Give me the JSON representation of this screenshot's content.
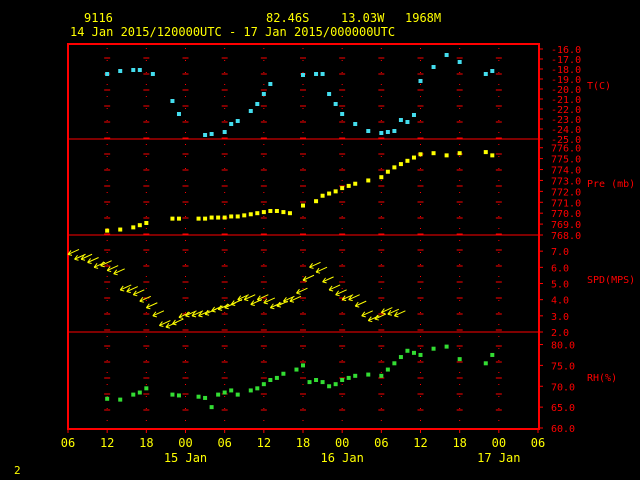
{
  "header": {
    "station_id": "9116",
    "latitude": "82.46S",
    "longitude": "13.03W",
    "elevation": "1968M",
    "time_range": "14 Jan 2015/120000UTC - 17 Jan 2015/000000UTC"
  },
  "footer": {
    "page_number": "2"
  },
  "colors": {
    "background": "#000000",
    "frame": "#ff0000",
    "text": "#ffff00",
    "temperature": "#44ddee",
    "pressure": "#ffff00",
    "wind": "#ffff00",
    "humidity": "#33dd33",
    "tick_marks": "#ff0000"
  },
  "chart_data": {
    "type": "scatter",
    "x_unit": "hours since 14 Jan 2015 06:00 UTC",
    "x_range": [
      0,
      72
    ],
    "x_tick_labels": [
      "06",
      "12",
      "18",
      "00",
      "06",
      "12",
      "18",
      "00",
      "06",
      "12",
      "18",
      "00",
      "06"
    ],
    "date_labels": [
      "15 Jan",
      "16 Jan",
      "17 Jan"
    ],
    "panels": [
      {
        "name": "T(C)",
        "ylim": [
          -25,
          -15.5
        ],
        "y_ticks": [
          "-16.0",
          "-17.0",
          "-18.0",
          "-19.0",
          "-20.0",
          "-21.0",
          "-22.0",
          "-23.0",
          "-24.0",
          "-25.0"
        ],
        "y_tick_values": [
          -16,
          -17,
          -18,
          -19,
          -20,
          -21,
          -22,
          -23,
          -24,
          -25
        ],
        "x": [
          6,
          8,
          10,
          11,
          13,
          16,
          17,
          21,
          22,
          24,
          25,
          26,
          28,
          29,
          30,
          31,
          36,
          38,
          39,
          40,
          41,
          42,
          44,
          46,
          48,
          49,
          50,
          51,
          52,
          53,
          54,
          56,
          58,
          60,
          64,
          65
        ],
        "values": [
          -18.5,
          -18.2,
          -18.1,
          -18.1,
          -18.5,
          -21.2,
          -22.5,
          -24.6,
          -24.5,
          -24.3,
          -23.5,
          -23.2,
          -22.2,
          -21.5,
          -20.5,
          -19.5,
          -18.6,
          -18.5,
          -18.5,
          -20.5,
          -21.5,
          -22.5,
          -23.5,
          -24.2,
          -24.4,
          -24.3,
          -24.2,
          -23.1,
          -23.3,
          -22.6,
          -19.2,
          -17.8,
          -16.6,
          -17.3,
          -18.5,
          -18.2
        ]
      },
      {
        "name": "Pre (mb)",
        "ylim": [
          768,
          776.8
        ],
        "y_ticks": [
          "776.0",
          "775.0",
          "774.0",
          "773.0",
          "772.0",
          "771.0",
          "770.0",
          "769.0",
          "768.0"
        ],
        "y_tick_values": [
          776,
          775,
          774,
          773,
          772,
          771,
          770,
          769,
          768
        ],
        "x": [
          6,
          8,
          10,
          11,
          12,
          16,
          17,
          20,
          21,
          22,
          23,
          24,
          25,
          26,
          27,
          28,
          29,
          30,
          31,
          32,
          33,
          34,
          36,
          38,
          39,
          40,
          41,
          42,
          43,
          44,
          46,
          48,
          49,
          50,
          51,
          52,
          53,
          54,
          56,
          58,
          60,
          64,
          65
        ],
        "values": [
          768.4,
          768.5,
          768.7,
          768.9,
          769.1,
          769.5,
          769.5,
          769.5,
          769.5,
          769.6,
          769.6,
          769.6,
          769.7,
          769.7,
          769.8,
          769.9,
          770.0,
          770.1,
          770.2,
          770.2,
          770.1,
          770.0,
          770.7,
          771.1,
          771.6,
          771.8,
          772.0,
          772.3,
          772.5,
          772.7,
          773.0,
          773.3,
          773.8,
          774.2,
          774.5,
          774.8,
          775.1,
          775.4,
          775.5,
          775.3,
          775.5,
          775.6,
          775.3
        ]
      },
      {
        "name": "SPD(MPS)",
        "ylim": [
          2,
          8
        ],
        "y_ticks": [
          "7.0",
          "6.0",
          "5.0",
          "4.0",
          "3.0",
          "2.0"
        ],
        "y_tick_values": [
          7,
          6,
          5,
          4,
          3,
          2
        ],
        "x": [
          0,
          1,
          2,
          3,
          4,
          5,
          6,
          7,
          8,
          9,
          10,
          11,
          12,
          13,
          14,
          15,
          16,
          17,
          18,
          19,
          20,
          21,
          22,
          23,
          24,
          25,
          26,
          27,
          28,
          29,
          30,
          31,
          32,
          33,
          34,
          35,
          36,
          37,
          38,
          39,
          40,
          41,
          42,
          43,
          44,
          45,
          46,
          47,
          48,
          49,
          50
        ],
        "values": [
          6.8,
          6.5,
          6.5,
          6.3,
          6.0,
          6.1,
          5.8,
          5.6,
          4.6,
          4.5,
          4.3,
          3.9,
          3.5,
          3.0,
          2.4,
          2.3,
          2.5,
          2.9,
          3.0,
          3.0,
          3.0,
          3.1,
          3.3,
          3.4,
          3.5,
          3.7,
          4.0,
          4.0,
          3.7,
          4.0,
          3.8,
          3.5,
          3.6,
          3.9,
          3.9,
          4.4,
          5.2,
          6.0,
          5.7,
          5.1,
          4.6,
          4.3,
          4.0,
          4.0,
          3.6,
          3.0,
          2.7,
          2.8,
          3.2,
          3.1,
          3.0
        ]
      },
      {
        "name": "RH(%)",
        "ylim": [
          60,
          83
        ],
        "y_ticks": [
          "80.0",
          "75.0",
          "70.0",
          "65.0",
          "60.0"
        ],
        "y_tick_values": [
          80,
          75,
          70,
          65,
          60
        ],
        "x": [
          6,
          8,
          10,
          11,
          12,
          16,
          17,
          20,
          21,
          22,
          23,
          24,
          25,
          26,
          28,
          29,
          30,
          31,
          32,
          33,
          35,
          36,
          37,
          38,
          39,
          40,
          41,
          42,
          43,
          44,
          46,
          48,
          49,
          50,
          51,
          52,
          53,
          54,
          56,
          58,
          60,
          64,
          65
        ],
        "values": [
          67.0,
          66.8,
          68.0,
          68.5,
          69.5,
          68.0,
          67.8,
          67.5,
          67.2,
          65.0,
          68.0,
          68.5,
          69.0,
          68.0,
          69.0,
          69.5,
          70.5,
          71.5,
          72.0,
          73.0,
          74.0,
          75.0,
          71.0,
          71.5,
          71.0,
          70.0,
          70.5,
          71.5,
          72.0,
          72.5,
          72.8,
          72.5,
          74.0,
          75.5,
          77.0,
          78.5,
          78.0,
          77.5,
          79.0,
          79.5,
          76.5,
          75.5,
          77.5
        ]
      }
    ]
  }
}
